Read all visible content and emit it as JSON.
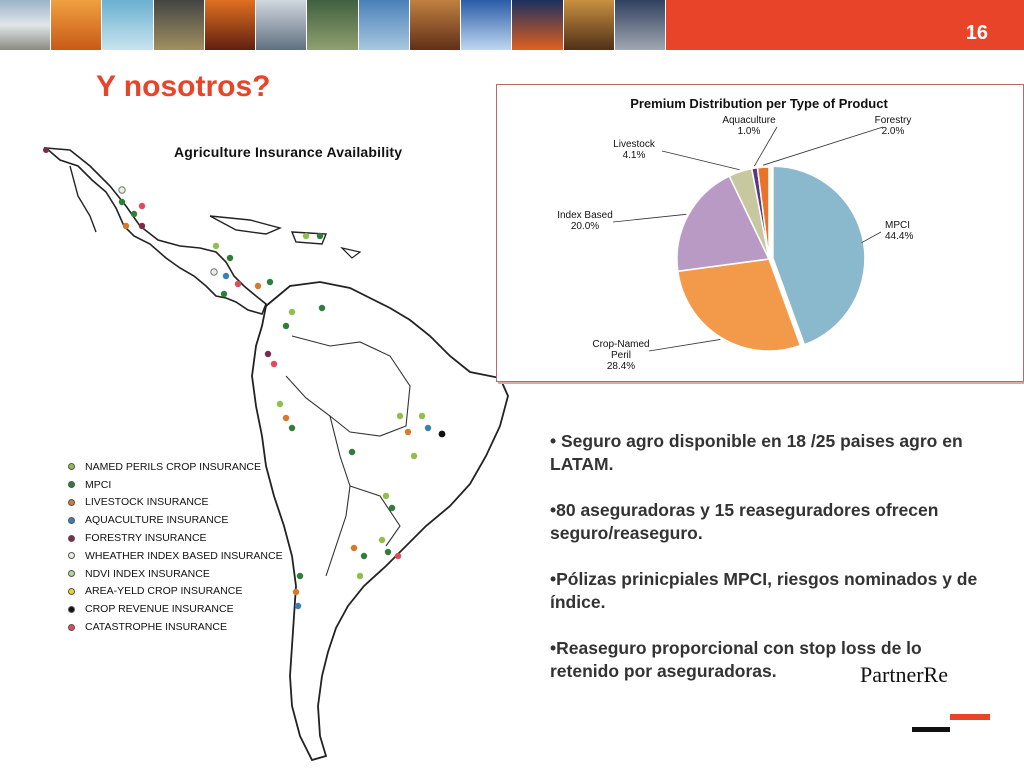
{
  "header": {
    "slide_number": "16"
  },
  "title": "Y nosotros?",
  "map": {
    "title": "Agriculture Insurance Availability",
    "legend": [
      {
        "label": "NAMED PERILS CROP INSURANCE",
        "color": "#8fbf4a"
      },
      {
        "label": "MPCI",
        "color": "#2f7d3a"
      },
      {
        "label": "LIVESTOCK INSURANCE",
        "color": "#d9772b"
      },
      {
        "label": "AQUACULTURE INSURANCE",
        "color": "#3a7fb8"
      },
      {
        "label": "FORESTRY INSURANCE",
        "color": "#7a2a4a"
      },
      {
        "label": "WHEATHER INDEX BASED INSURANCE",
        "color": "#e9efe0"
      },
      {
        "label": "NDVI INDEX INSURANCE",
        "color": "#b7d49a"
      },
      {
        "label": "AREA-YELD CROP INSURANCE",
        "color": "#e8d820"
      },
      {
        "label": "CROP REVENUE INSURANCE",
        "color": "#111111"
      },
      {
        "label": "CATASTROPHE INSURANCE",
        "color": "#e04a5a"
      }
    ]
  },
  "chart_data": {
    "type": "pie",
    "title": "Premium Distribution per Type of Product",
    "slices": [
      {
        "label": "MPCI",
        "value": 44.4,
        "display": "44.4%",
        "color": "#8ab8cc"
      },
      {
        "label": "Crop-Named Peril",
        "value": 28.4,
        "display": "28.4%",
        "color": "#f39a4a"
      },
      {
        "label": "Index Based",
        "value": 20.0,
        "display": "20.0%",
        "color": "#b99ac4"
      },
      {
        "label": "Livestock",
        "value": 4.1,
        "display": "4.1%",
        "color": "#c8c8a0"
      },
      {
        "label": "Aquaculture",
        "value": 1.0,
        "display": "1.0%",
        "color": "#5a3a7a"
      },
      {
        "label": "Forestry",
        "value": 2.0,
        "display": "2.0%",
        "color": "#e8742a"
      }
    ]
  },
  "bullets": [
    "• Seguro agro disponible en 18 /25 paises agro en LATAM.",
    "•80 aseguradoras y 15 reaseguradores ofrecen seguro/reaseguro.",
    "•Pólizas prinicpiales MPCI, riesgos nominados y de índice.",
    "•Reaseguro proporcional con stop loss de lo retenido por aseguradoras."
  ],
  "logo": "PartnerRe",
  "colors": {
    "accent": "#e8442a",
    "text": "#333333"
  }
}
